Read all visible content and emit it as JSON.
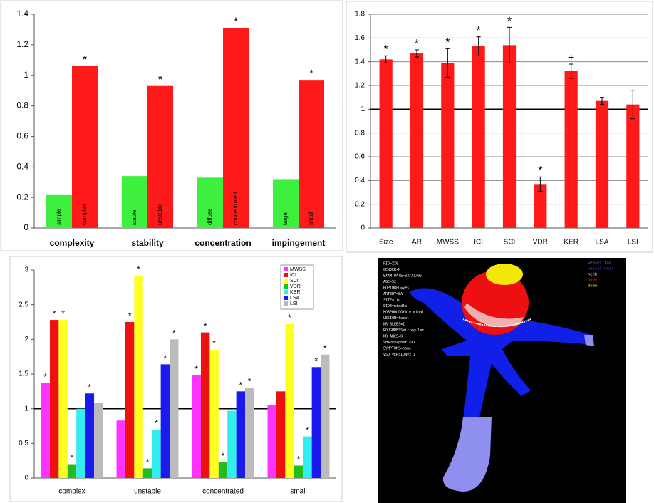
{
  "chart_data": [
    {
      "type": "bar",
      "categories": [
        "complexity",
        "stability",
        "concentration",
        "impingement"
      ],
      "series": [
        {
          "color": "#3df03d",
          "values": [
            0.22,
            0.34,
            0.33,
            0.32
          ],
          "bar_labels": [
            "simple",
            "stable",
            "diffuse",
            "large"
          ]
        },
        {
          "color": "#ff1a1a",
          "values": [
            1.06,
            0.93,
            1.31,
            0.97
          ],
          "bar_labels": [
            "complex",
            "unstable",
            "concentrated",
            "small"
          ],
          "markers": [
            "*",
            "*",
            "*",
            "*"
          ]
        }
      ],
      "ylim": [
        0,
        1.4
      ],
      "yticks": [
        0,
        0.2,
        0.4,
        0.6,
        0.8,
        1,
        1.2,
        1.4
      ],
      "grid": false
    },
    {
      "type": "bar",
      "categories": [
        "Size",
        "AR",
        "MWSS",
        "ICI",
        "SCI",
        "VDR",
        "KER",
        "LSA",
        "LSI"
      ],
      "series": [
        {
          "color": "#ff1a1a",
          "values": [
            1.42,
            1.47,
            1.39,
            1.53,
            1.54,
            0.37,
            1.32,
            1.07,
            1.04
          ],
          "errors": [
            0.03,
            0.03,
            0.12,
            0.08,
            0.15,
            0.06,
            0.06,
            0.03,
            0.12
          ],
          "markers": [
            "*",
            "*",
            "*",
            "*",
            "*",
            "*",
            "+",
            null,
            null
          ]
        }
      ],
      "ylim": [
        0,
        1.8
      ],
      "yticks": [
        0,
        0.2,
        0.4,
        0.6,
        0.8,
        1,
        1.2,
        1.4,
        1.6,
        1.8
      ],
      "grid": true,
      "reference_line": 1
    },
    {
      "type": "bar",
      "categories": [
        "complex",
        "unstable",
        "concentrated",
        "small"
      ],
      "series": [
        {
          "name": "MWSS",
          "color": "#ff33ff",
          "values": [
            1.37,
            0.83,
            1.48,
            1.05
          ],
          "markers": [
            "*",
            null,
            "*",
            null
          ]
        },
        {
          "name": "ICI",
          "color": "#ee1111",
          "values": [
            2.28,
            2.25,
            2.1,
            1.25
          ],
          "markers": [
            "*",
            "*",
            "*",
            null
          ]
        },
        {
          "name": "SCI",
          "color": "#ffff22",
          "values": [
            2.28,
            2.92,
            1.85,
            2.22
          ],
          "markers": [
            "*",
            "*",
            "*",
            "*"
          ]
        },
        {
          "name": "VDR",
          "color": "#22bb22",
          "values": [
            0.2,
            0.14,
            0.23,
            0.18
          ],
          "markers": [
            "*",
            "*",
            "*",
            "*"
          ]
        },
        {
          "name": "KER",
          "color": "#33eeee",
          "values": [
            1.0,
            0.7,
            0.97,
            0.6
          ],
          "markers": [
            null,
            "*",
            null,
            "*"
          ]
        },
        {
          "name": "LSA",
          "color": "#1a1aee",
          "values": [
            1.22,
            1.64,
            1.25,
            1.6
          ],
          "markers": [
            "*",
            "*",
            "*",
            "*"
          ]
        },
        {
          "name": "LSI",
          "color": "#bbbbbb",
          "values": [
            1.08,
            2.0,
            1.3,
            1.78
          ],
          "markers": [
            null,
            "*",
            "*",
            "*"
          ]
        }
      ],
      "ylim": [
        0,
        3
      ],
      "yticks": [
        0,
        0.5,
        1,
        1.5,
        2,
        2.5,
        3
      ],
      "grid": false,
      "reference_line": 1,
      "legend": "top-right"
    }
  ],
  "image": {
    "legend": [
      "vessel far",
      "vessel near",
      "neck",
      "body",
      "dome"
    ],
    "info": [
      "PID=XX6",
      "GENDER=M",
      "EXAM DATE=03/31/05",
      "AGE=52",
      "RUPTURED=yes",
      "ARTERY=BA",
      "SITE=tip",
      "SIDE=middle",
      "MORPHOLOGY=terminal",
      "LESION=focal",
      "NR BLEBS=1",
      "ROUGHNESS=irregular",
      "NR ARES=0",
      "SHAPE=spherical",
      "SYMPTOMS=none",
      "VSD VERSION=2.1"
    ]
  }
}
